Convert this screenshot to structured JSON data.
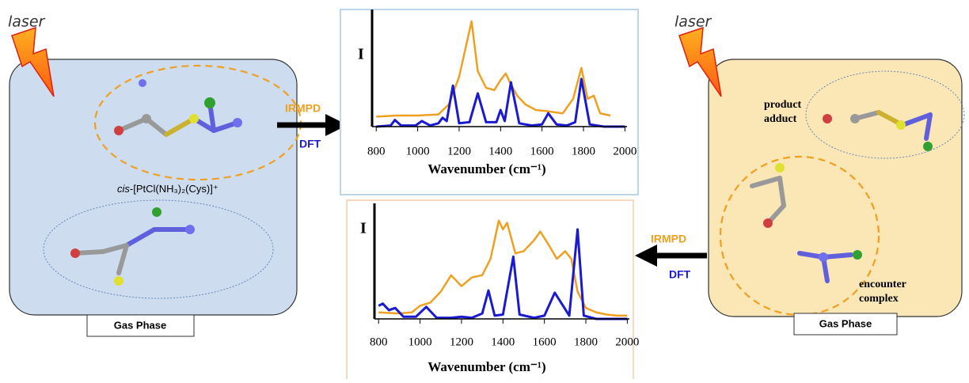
{
  "left_panel": {
    "laser": "laser",
    "molecule_label_prefix": "cis",
    "molecule_label": "-[PtCl(NH₃)₂(Cys)]⁺",
    "phase": "Gas Phase"
  },
  "right_panel": {
    "laser": "laser",
    "product_label": [
      "product",
      "adduct"
    ],
    "encounter_label": [
      "encounter",
      "complex"
    ],
    "phase": "Gas Phase"
  },
  "top_arrow": {
    "upper": "IRMPD",
    "lower": "DFT"
  },
  "bottom_arrow": {
    "upper": "IRMPD",
    "lower": "DFT"
  },
  "chart_data": [
    {
      "type": "line",
      "y_label": "I",
      "x_label": "Wavenumber (cm⁻¹)",
      "xlim": [
        780,
        2010
      ],
      "xticks": [
        800,
        1000,
        1200,
        1400,
        1600,
        1800,
        2000
      ],
      "ylim": [
        0,
        1
      ],
      "series": [
        {
          "color": "#f0a020",
          "x": [
            800,
            900,
            1000,
            1100,
            1150,
            1200,
            1230,
            1260,
            1290,
            1330,
            1370,
            1400,
            1425,
            1450,
            1480,
            1520,
            1570,
            1620,
            1700,
            1750,
            1790,
            1820,
            1850,
            1880,
            1930
          ],
          "values": [
            0.09,
            0.1,
            0.1,
            0.11,
            0.2,
            0.45,
            0.7,
            0.95,
            0.5,
            0.35,
            0.33,
            0.42,
            0.48,
            0.38,
            0.28,
            0.2,
            0.15,
            0.14,
            0.12,
            0.25,
            0.53,
            0.25,
            0.28,
            0.12,
            0.1
          ]
        },
        {
          "color": "#1a1ad0",
          "x": [
            800,
            870,
            890,
            920,
            990,
            1020,
            1060,
            1100,
            1120,
            1140,
            1170,
            1200,
            1250,
            1290,
            1330,
            1380,
            1400,
            1420,
            1450,
            1490,
            1550,
            1600,
            1630,
            1670,
            1720,
            1760,
            1790,
            1830,
            1900,
            2000
          ],
          "values": [
            0,
            0.01,
            0.06,
            0.01,
            0.01,
            0.05,
            0.01,
            0.03,
            0.08,
            0.05,
            0.37,
            0.03,
            0.04,
            0.3,
            0.04,
            0.04,
            0.15,
            0.05,
            0.4,
            0.03,
            0.01,
            0.02,
            0.12,
            0.02,
            0.01,
            0.04,
            0.43,
            0.02,
            0,
            0
          ]
        }
      ]
    },
    {
      "type": "line",
      "y_label": "I",
      "x_label": "Wavenumber (cm⁻¹)",
      "xlim": [
        780,
        2010
      ],
      "xticks": [
        800,
        1000,
        1200,
        1400,
        1600,
        1800,
        2000
      ],
      "ylim": [
        0,
        1
      ],
      "series": [
        {
          "color": "#f0a020",
          "x": [
            800,
            900,
            960,
            1000,
            1050,
            1100,
            1150,
            1200,
            1250,
            1300,
            1340,
            1380,
            1400,
            1420,
            1460,
            1500,
            1550,
            1580,
            1620,
            1660,
            1700,
            1730,
            1760,
            1800,
            1850,
            1900,
            1950,
            2000
          ],
          "values": [
            0.06,
            0.05,
            0.06,
            0.12,
            0.15,
            0.25,
            0.4,
            0.3,
            0.38,
            0.4,
            0.55,
            0.9,
            0.82,
            0.88,
            0.6,
            0.62,
            0.72,
            0.8,
            0.68,
            0.55,
            0.62,
            0.55,
            0.25,
            0.1,
            0.06,
            0.04,
            0.03,
            0.03
          ]
        },
        {
          "color": "#1a1ad0",
          "x": [
            800,
            820,
            850,
            880,
            920,
            980,
            1030,
            1080,
            1150,
            1200,
            1250,
            1300,
            1330,
            1360,
            1400,
            1450,
            1480,
            1550,
            1600,
            1650,
            1680,
            1720,
            1760,
            1790,
            1850,
            2000
          ],
          "values": [
            0.12,
            0.14,
            0.08,
            0.1,
            0.02,
            0.02,
            0.11,
            0.01,
            0.01,
            0.02,
            0.01,
            0.05,
            0.26,
            0.03,
            0.04,
            0.57,
            0.04,
            0.01,
            0.03,
            0.24,
            0.15,
            0.03,
            0.82,
            0.03,
            0,
            0
          ]
        }
      ]
    }
  ]
}
